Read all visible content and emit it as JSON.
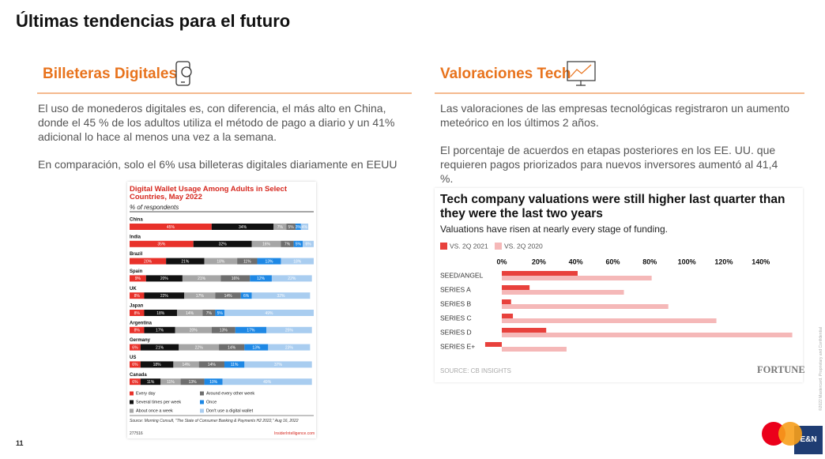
{
  "header": {
    "title": "Últimas tendencias para el futuro"
  },
  "sections": [
    {
      "heading": "Billeteras Digitales",
      "paragraphs": [
        "El uso de monederos digitales es, con diferencia, el más alto en China, donde el 45 % de los adultos utiliza el método de pago a diario y un 41% adicional lo hace al menos una vez a la semana.",
        "En comparación, solo el 6% usa billeteras digitales diariamente en EEUU"
      ]
    },
    {
      "heading": "Valoraciones Tech",
      "paragraphs": [
        "Las valoraciones de las empresas tecnológicas registraron un aumento meteórico en los últimos 2 años.",
        "El porcentaje de acuerdos en etapas posteriores en los EE. UU. que requieren pagos priorizados para nuevos inversores aumentó al 41,4 %."
      ]
    }
  ],
  "footer": {
    "page": "11",
    "legal": "©2022 Mastercard. Proprietary and Confidential",
    "badge": "E&N"
  },
  "chart_data": [
    {
      "type": "bar",
      "orientation": "horizontal",
      "stacked": true,
      "title": "Digital Wallet Usage Among Adults in Select Countries, May 2022",
      "subtitle": "% of respondents",
      "categories": [
        "China",
        "India",
        "Brazil",
        "Spain",
        "UK",
        "Japan",
        "Argentina",
        "Germany",
        "US",
        "Canada"
      ],
      "xlim": [
        0,
        101
      ],
      "legend": "bottom",
      "series": [
        {
          "name": "Every day",
          "color": "#e8312a",
          "values": [
            45,
            35,
            20,
            9,
            8,
            8,
            8,
            6,
            6,
            6
          ],
          "value_labels": [
            "45%",
            "35%",
            "20%",
            "9%",
            "8%",
            "8%",
            "8%",
            "6%",
            "6%",
            "6%"
          ]
        },
        {
          "name": "Several times per week",
          "color": "#111111",
          "values": [
            34,
            32,
            21,
            20,
            22,
            18,
            17,
            21,
            18,
            11
          ],
          "value_labels": [
            "34%",
            "32%",
            "21%",
            "20%",
            "22%",
            "18%",
            "17%",
            "21%",
            "18%",
            "11%"
          ]
        },
        {
          "name": "About once a week",
          "color": "#a6a6a6",
          "values": [
            7,
            16,
            18,
            21,
            17,
            14,
            20,
            22,
            14,
            11
          ],
          "value_labels": [
            "7%",
            "16%",
            "18%",
            "21%",
            "17%",
            "14%",
            "20%",
            "22%",
            "14%",
            "11%"
          ]
        },
        {
          "name": "Around every other week",
          "color": "#6e6e6e",
          "values": [
            5,
            7,
            11,
            16,
            14,
            7,
            13,
            14,
            14,
            13
          ],
          "value_labels": [
            "5%",
            "7%",
            "11%",
            "16%",
            "14%",
            "7%",
            "13%",
            "14%",
            "14%",
            "13%"
          ]
        },
        {
          "name": "Once",
          "color": "#1e88e5",
          "values": [
            3,
            5,
            13,
            12,
            6,
            5,
            17,
            13,
            11,
            10
          ],
          "value_labels": [
            "3%",
            "5%",
            "13%",
            "12%",
            "6%",
            "5%",
            "17%",
            "13%",
            "11%",
            "10%"
          ]
        },
        {
          "name": "Don't use a digital wallet",
          "color": "#a9cdf0",
          "values": [
            4,
            6,
            18,
            22,
            32,
            49,
            25,
            23,
            37,
            49
          ],
          "value_labels": [
            "4%",
            "6%",
            "18%",
            "22%",
            "32%",
            "49%",
            "25%",
            "23%",
            "37%",
            "49%"
          ]
        }
      ],
      "source": "Source: Morning Consult, \"The State of Consumer Banking & Payments H2 2022,\" Aug 16, 2022",
      "code": "277516",
      "site": "InsiderIntelligence.com"
    },
    {
      "type": "bar",
      "orientation": "horizontal",
      "stacked": false,
      "title": "Tech company valuations were still higher last quarter than they were the last two years",
      "subtitle": "Valuations have risen at nearly every stage of funding.",
      "categories": [
        "SEED/ANGEL",
        "SERIES A",
        "SERIES B",
        "SERIES C",
        "SERIES D",
        "SERIES E+"
      ],
      "xlim": [
        -10,
        160
      ],
      "xticks": [
        {
          "value": 0,
          "label": "0%"
        },
        {
          "value": 20,
          "label": "20%"
        },
        {
          "value": 40,
          "label": "40%"
        },
        {
          "value": 60,
          "label": "60%"
        },
        {
          "value": 80,
          "label": "80%"
        },
        {
          "value": 100,
          "label": "100%"
        },
        {
          "value": 120,
          "label": "120%"
        },
        {
          "value": 140,
          "label": "140%"
        }
      ],
      "legend": "top-left",
      "series": [
        {
          "name": "VS. 2Q 2021",
          "color": "#e8413c",
          "values": [
            41,
            15,
            5,
            6,
            24,
            -9
          ]
        },
        {
          "name": "VS. 2Q 2020",
          "color": "#f5b8b8",
          "values": [
            81,
            66,
            90,
            116,
            157,
            35
          ]
        }
      ],
      "source": "SOURCE: CB INSIGHTS",
      "brand": "FORTUNE"
    }
  ]
}
